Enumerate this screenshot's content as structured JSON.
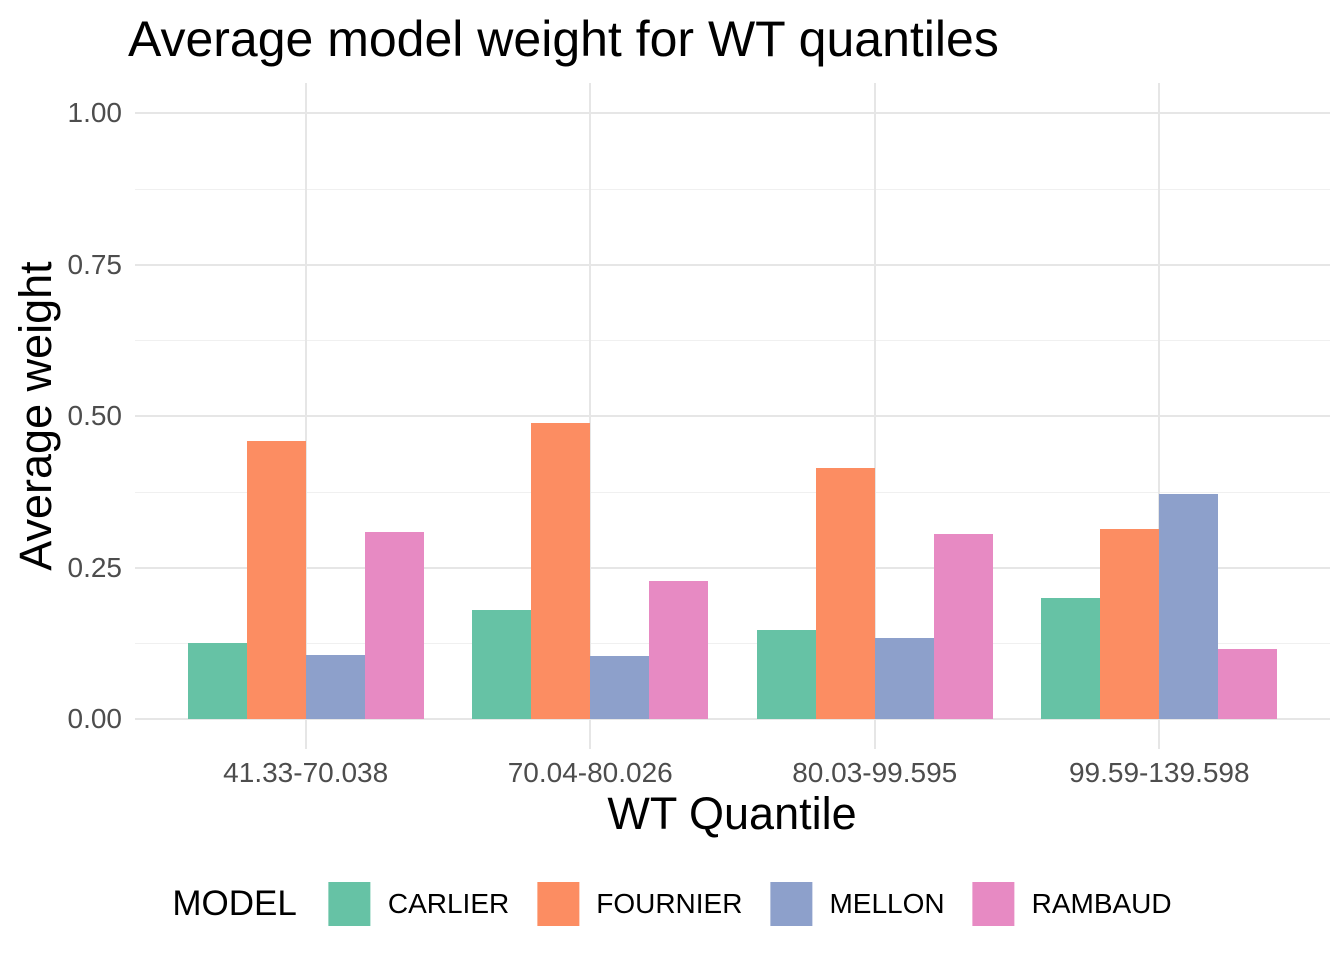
{
  "chart_data": {
    "type": "bar",
    "variant": "grouped",
    "title": "Average model weight for WT quantiles",
    "xlabel": "WT Quantile",
    "ylabel": "Average weight",
    "categories": [
      "41.33-70.038",
      "70.04-80.026",
      "80.03-99.595",
      "99.59-139.598"
    ],
    "series": [
      {
        "name": "CARLIER",
        "color": "#66C2A5",
        "values": [
          0.126,
          0.18,
          0.147,
          0.2
        ]
      },
      {
        "name": "FOURNIER",
        "color": "#FC8D62",
        "values": [
          0.459,
          0.489,
          0.414,
          0.314
        ]
      },
      {
        "name": "MELLON",
        "color": "#8DA0CB",
        "values": [
          0.106,
          0.104,
          0.133,
          0.371
        ]
      },
      {
        "name": "RAMBAUD",
        "color": "#E78AC3",
        "values": [
          0.309,
          0.227,
          0.305,
          0.116
        ]
      }
    ],
    "y_axis": {
      "ticks": [
        {
          "label": "0.00",
          "value": 0.0
        },
        {
          "label": "0.25",
          "value": 0.25
        },
        {
          "label": "0.50",
          "value": 0.5
        },
        {
          "label": "0.75",
          "value": 0.75
        },
        {
          "label": "1.00",
          "value": 1.0
        }
      ],
      "minor_gridlines": [
        0.125,
        0.375,
        0.625,
        0.875
      ],
      "ylim": [
        0,
        1
      ]
    },
    "legend": {
      "title": "MODEL",
      "position": "bottom"
    },
    "grid": true,
    "background": "#ffffff"
  }
}
